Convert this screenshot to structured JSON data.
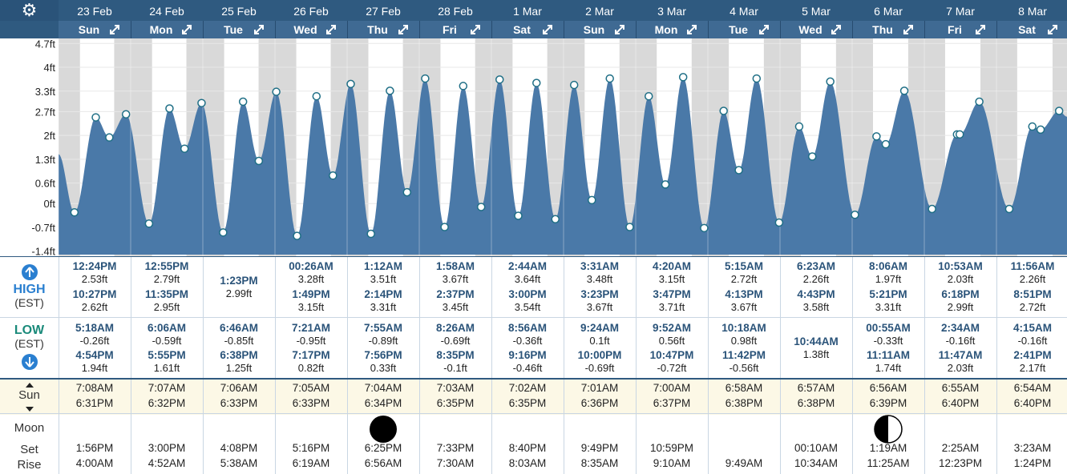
{
  "header": {
    "days": [
      {
        "date": "23 Feb",
        "weekday": "Sun"
      },
      {
        "date": "24 Feb",
        "weekday": "Mon"
      },
      {
        "date": "25 Feb",
        "weekday": "Tue"
      },
      {
        "date": "26 Feb",
        "weekday": "Wed"
      },
      {
        "date": "27 Feb",
        "weekday": "Thu"
      },
      {
        "date": "28 Feb",
        "weekday": "Fri"
      },
      {
        "date": "1 Mar",
        "weekday": "Sat"
      },
      {
        "date": "2 Mar",
        "weekday": "Sun"
      },
      {
        "date": "3 Mar",
        "weekday": "Mon"
      },
      {
        "date": "4 Mar",
        "weekday": "Tue"
      },
      {
        "date": "5 Mar",
        "weekday": "Wed"
      },
      {
        "date": "6 Mar",
        "weekday": "Thu"
      },
      {
        "date": "7 Mar",
        "weekday": "Fri"
      },
      {
        "date": "8 Mar",
        "weekday": "Sat"
      }
    ]
  },
  "labels": {
    "high": "HIGH",
    "high_tz": "(EST)",
    "low": "LOW",
    "low_tz": "(EST)",
    "sun": "Sun",
    "moon": "Moon",
    "set": "Set",
    "rise": "Rise"
  },
  "colors": {
    "tide_fill": "#4a79a8",
    "header": "#2f5a80",
    "night_band": "#d9d9d9",
    "sun_row": "#fcf8e6"
  },
  "chart_data": {
    "type": "area",
    "ylabel": "",
    "xlabel": "",
    "yticks": [
      "4.7ft",
      "4ft",
      "3.3ft",
      "2.7ft",
      "2ft",
      "1.3ft",
      "0.6ft",
      "0ft",
      "-0.7ft",
      "-1.4ft"
    ],
    "ylim": [
      -1.5,
      4.8
    ],
    "unit": "ft",
    "series": [
      {
        "values": [
          {
            "day": 0,
            "time": "5:18AM",
            "height": -0.26,
            "type": "low"
          },
          {
            "day": 0,
            "time": "12:24PM",
            "height": 2.53,
            "type": "high"
          },
          {
            "day": 0,
            "time": "4:54PM",
            "height": 1.94,
            "type": "low"
          },
          {
            "day": 0,
            "time": "10:27PM",
            "height": 2.62,
            "type": "high"
          },
          {
            "day": 1,
            "time": "6:06AM",
            "height": -0.59,
            "type": "low"
          },
          {
            "day": 1,
            "time": "12:55PM",
            "height": 2.79,
            "type": "high"
          },
          {
            "day": 1,
            "time": "5:55PM",
            "height": 1.61,
            "type": "low"
          },
          {
            "day": 1,
            "time": "11:35PM",
            "height": 2.95,
            "type": "high"
          },
          {
            "day": 2,
            "time": "6:46AM",
            "height": -0.85,
            "type": "low"
          },
          {
            "day": 2,
            "time": "1:23PM",
            "height": 2.99,
            "type": "high"
          },
          {
            "day": 2,
            "time": "6:38PM",
            "height": 1.25,
            "type": "low"
          },
          {
            "day": 3,
            "time": "00:26AM",
            "height": 3.28,
            "type": "high"
          },
          {
            "day": 3,
            "time": "7:21AM",
            "height": -0.95,
            "type": "low"
          },
          {
            "day": 3,
            "time": "1:49PM",
            "height": 3.15,
            "type": "high"
          },
          {
            "day": 3,
            "time": "7:17PM",
            "height": 0.82,
            "type": "low"
          },
          {
            "day": 4,
            "time": "1:12AM",
            "height": 3.51,
            "type": "high"
          },
          {
            "day": 4,
            "time": "7:55AM",
            "height": -0.89,
            "type": "low"
          },
          {
            "day": 4,
            "time": "2:14PM",
            "height": 3.31,
            "type": "high"
          },
          {
            "day": 4,
            "time": "7:56PM",
            "height": 0.33,
            "type": "low"
          },
          {
            "day": 5,
            "time": "1:58AM",
            "height": 3.67,
            "type": "high"
          },
          {
            "day": 5,
            "time": "8:26AM",
            "height": -0.69,
            "type": "low"
          },
          {
            "day": 5,
            "time": "2:37PM",
            "height": 3.45,
            "type": "high"
          },
          {
            "day": 5,
            "time": "8:35PM",
            "height": -0.1,
            "type": "low"
          },
          {
            "day": 6,
            "time": "2:44AM",
            "height": 3.64,
            "type": "high"
          },
          {
            "day": 6,
            "time": "8:56AM",
            "height": -0.36,
            "type": "low"
          },
          {
            "day": 6,
            "time": "3:00PM",
            "height": 3.54,
            "type": "high"
          },
          {
            "day": 6,
            "time": "9:16PM",
            "height": -0.46,
            "type": "low"
          },
          {
            "day": 7,
            "time": "3:31AM",
            "height": 3.48,
            "type": "high"
          },
          {
            "day": 7,
            "time": "9:24AM",
            "height": 0.1,
            "type": "low"
          },
          {
            "day": 7,
            "time": "3:23PM",
            "height": 3.67,
            "type": "high"
          },
          {
            "day": 7,
            "time": "10:00PM",
            "height": -0.69,
            "type": "low"
          },
          {
            "day": 8,
            "time": "4:20AM",
            "height": 3.15,
            "type": "high"
          },
          {
            "day": 8,
            "time": "9:52AM",
            "height": 0.56,
            "type": "low"
          },
          {
            "day": 8,
            "time": "3:47PM",
            "height": 3.71,
            "type": "high"
          },
          {
            "day": 8,
            "time": "10:47PM",
            "height": -0.72,
            "type": "low"
          },
          {
            "day": 9,
            "time": "5:15AM",
            "height": 2.72,
            "type": "high"
          },
          {
            "day": 9,
            "time": "10:18AM",
            "height": 0.98,
            "type": "low"
          },
          {
            "day": 9,
            "time": "4:13PM",
            "height": 3.67,
            "type": "high"
          },
          {
            "day": 9,
            "time": "11:42PM",
            "height": -0.56,
            "type": "low"
          },
          {
            "day": 10,
            "time": "6:23AM",
            "height": 2.26,
            "type": "high"
          },
          {
            "day": 10,
            "time": "10:44AM",
            "height": 1.38,
            "type": "low"
          },
          {
            "day": 10,
            "time": "4:43PM",
            "height": 3.58,
            "type": "high"
          },
          {
            "day": 11,
            "time": "00:55AM",
            "height": -0.33,
            "type": "low"
          },
          {
            "day": 11,
            "time": "8:06AM",
            "height": 1.97,
            "type": "high"
          },
          {
            "day": 11,
            "time": "11:11AM",
            "height": 1.74,
            "type": "low"
          },
          {
            "day": 11,
            "time": "5:21PM",
            "height": 3.31,
            "type": "high"
          },
          {
            "day": 12,
            "time": "2:34AM",
            "height": -0.16,
            "type": "low"
          },
          {
            "day": 12,
            "time": "10:53AM",
            "height": 2.03,
            "type": "high"
          },
          {
            "day": 12,
            "time": "11:47AM",
            "height": 2.03,
            "type": "low"
          },
          {
            "day": 12,
            "time": "6:18PM",
            "height": 2.99,
            "type": "high"
          },
          {
            "day": 13,
            "time": "4:15AM",
            "height": -0.16,
            "type": "low"
          },
          {
            "day": 13,
            "time": "11:56AM",
            "height": 2.26,
            "type": "high"
          },
          {
            "day": 13,
            "time": "2:41PM",
            "height": 2.17,
            "type": "low"
          },
          {
            "day": 13,
            "time": "8:51PM",
            "height": 2.72,
            "type": "high"
          }
        ]
      }
    ]
  },
  "table": {
    "high": [
      [
        {
          "t": "12:24PM",
          "h": "2.53ft"
        },
        {
          "t": "10:27PM",
          "h": "2.62ft"
        }
      ],
      [
        {
          "t": "12:55PM",
          "h": "2.79ft"
        },
        {
          "t": "11:35PM",
          "h": "2.95ft"
        }
      ],
      [
        {
          "t": "1:23PM",
          "h": "2.99ft"
        }
      ],
      [
        {
          "t": "00:26AM",
          "h": "3.28ft"
        },
        {
          "t": "1:49PM",
          "h": "3.15ft"
        }
      ],
      [
        {
          "t": "1:12AM",
          "h": "3.51ft"
        },
        {
          "t": "2:14PM",
          "h": "3.31ft"
        }
      ],
      [
        {
          "t": "1:58AM",
          "h": "3.67ft"
        },
        {
          "t": "2:37PM",
          "h": "3.45ft"
        }
      ],
      [
        {
          "t": "2:44AM",
          "h": "3.64ft"
        },
        {
          "t": "3:00PM",
          "h": "3.54ft"
        }
      ],
      [
        {
          "t": "3:31AM",
          "h": "3.48ft"
        },
        {
          "t": "3:23PM",
          "h": "3.67ft"
        }
      ],
      [
        {
          "t": "4:20AM",
          "h": "3.15ft"
        },
        {
          "t": "3:47PM",
          "h": "3.71ft"
        }
      ],
      [
        {
          "t": "5:15AM",
          "h": "2.72ft"
        },
        {
          "t": "4:13PM",
          "h": "3.67ft"
        }
      ],
      [
        {
          "t": "6:23AM",
          "h": "2.26ft"
        },
        {
          "t": "4:43PM",
          "h": "3.58ft"
        }
      ],
      [
        {
          "t": "8:06AM",
          "h": "1.97ft"
        },
        {
          "t": "5:21PM",
          "h": "3.31ft"
        }
      ],
      [
        {
          "t": "10:53AM",
          "h": "2.03ft"
        },
        {
          "t": "6:18PM",
          "h": "2.99ft"
        }
      ],
      [
        {
          "t": "11:56AM",
          "h": "2.26ft"
        },
        {
          "t": "8:51PM",
          "h": "2.72ft"
        }
      ]
    ],
    "low": [
      [
        {
          "t": "5:18AM",
          "h": "-0.26ft"
        },
        {
          "t": "4:54PM",
          "h": "1.94ft"
        }
      ],
      [
        {
          "t": "6:06AM",
          "h": "-0.59ft"
        },
        {
          "t": "5:55PM",
          "h": "1.61ft"
        }
      ],
      [
        {
          "t": "6:46AM",
          "h": "-0.85ft"
        },
        {
          "t": "6:38PM",
          "h": "1.25ft"
        }
      ],
      [
        {
          "t": "7:21AM",
          "h": "-0.95ft"
        },
        {
          "t": "7:17PM",
          "h": "0.82ft"
        }
      ],
      [
        {
          "t": "7:55AM",
          "h": "-0.89ft"
        },
        {
          "t": "7:56PM",
          "h": "0.33ft"
        }
      ],
      [
        {
          "t": "8:26AM",
          "h": "-0.69ft"
        },
        {
          "t": "8:35PM",
          "h": "-0.1ft"
        }
      ],
      [
        {
          "t": "8:56AM",
          "h": "-0.36ft"
        },
        {
          "t": "9:16PM",
          "h": "-0.46ft"
        }
      ],
      [
        {
          "t": "9:24AM",
          "h": "0.1ft"
        },
        {
          "t": "10:00PM",
          "h": "-0.69ft"
        }
      ],
      [
        {
          "t": "9:52AM",
          "h": "0.56ft"
        },
        {
          "t": "10:47PM",
          "h": "-0.72ft"
        }
      ],
      [
        {
          "t": "10:18AM",
          "h": "0.98ft"
        },
        {
          "t": "11:42PM",
          "h": "-0.56ft"
        }
      ],
      [
        {
          "t": "10:44AM",
          "h": "1.38ft"
        }
      ],
      [
        {
          "t": "00:55AM",
          "h": "-0.33ft"
        },
        {
          "t": "11:11AM",
          "h": "1.74ft"
        }
      ],
      [
        {
          "t": "2:34AM",
          "h": "-0.16ft"
        },
        {
          "t": "11:47AM",
          "h": "2.03ft"
        }
      ],
      [
        {
          "t": "4:15AM",
          "h": "-0.16ft"
        },
        {
          "t": "2:41PM",
          "h": "2.17ft"
        }
      ]
    ],
    "sun": [
      [
        "7:08AM",
        "6:31PM"
      ],
      [
        "7:07AM",
        "6:32PM"
      ],
      [
        "7:06AM",
        "6:33PM"
      ],
      [
        "7:05AM",
        "6:33PM"
      ],
      [
        "7:04AM",
        "6:34PM"
      ],
      [
        "7:03AM",
        "6:35PM"
      ],
      [
        "7:02AM",
        "6:35PM"
      ],
      [
        "7:01AM",
        "6:36PM"
      ],
      [
        "7:00AM",
        "6:37PM"
      ],
      [
        "6:58AM",
        "6:38PM"
      ],
      [
        "6:57AM",
        "6:38PM"
      ],
      [
        "6:56AM",
        "6:39PM"
      ],
      [
        "6:55AM",
        "6:40PM"
      ],
      [
        "6:54AM",
        "6:40PM"
      ]
    ],
    "moon": [
      {
        "phase": "",
        "set": "1:56PM",
        "rise": "4:00AM"
      },
      {
        "phase": "",
        "set": "3:00PM",
        "rise": "4:52AM"
      },
      {
        "phase": "",
        "set": "4:08PM",
        "rise": "5:38AM"
      },
      {
        "phase": "",
        "set": "5:16PM",
        "rise": "6:19AM"
      },
      {
        "phase": "new",
        "set": "6:25PM",
        "rise": "6:56AM"
      },
      {
        "phase": "",
        "set": "7:33PM",
        "rise": "7:30AM"
      },
      {
        "phase": "",
        "set": "8:40PM",
        "rise": "8:03AM"
      },
      {
        "phase": "",
        "set": "9:49PM",
        "rise": "8:35AM"
      },
      {
        "phase": "",
        "set": "10:59PM",
        "rise": "9:10AM"
      },
      {
        "phase": "",
        "set": "",
        "rise": "9:49AM"
      },
      {
        "phase": "",
        "set": "00:10AM",
        "rise": "10:34AM"
      },
      {
        "phase": "first-quarter",
        "set": "1:19AM",
        "rise": "11:25AM"
      },
      {
        "phase": "",
        "set": "2:25AM",
        "rise": "12:23PM"
      },
      {
        "phase": "",
        "set": "3:23AM",
        "rise": "1:24PM"
      }
    ]
  }
}
